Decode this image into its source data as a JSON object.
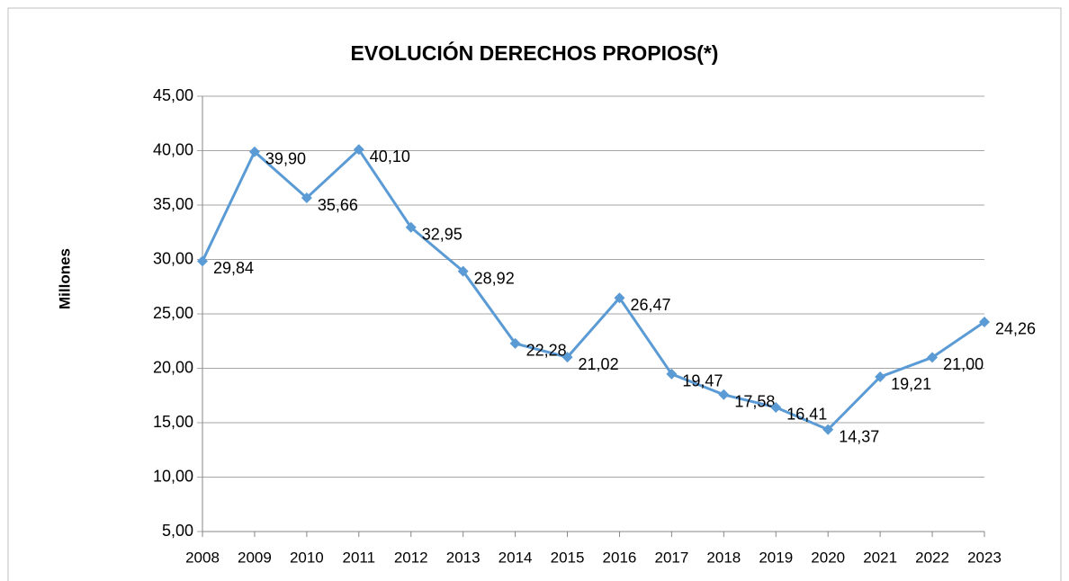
{
  "chart_data": {
    "type": "line",
    "title": "EVOLUCIÓN DERECHOS PROPIOS(*)",
    "y_label": "Millones",
    "categories": [
      "2008",
      "2009",
      "2010",
      "2011",
      "2012",
      "2013",
      "2014",
      "2015",
      "2016",
      "2017",
      "2018",
      "2019",
      "2020",
      "2021",
      "2022",
      "2023"
    ],
    "values": [
      29.84,
      39.9,
      35.66,
      40.1,
      32.95,
      28.92,
      22.28,
      21.02,
      26.47,
      19.47,
      17.58,
      16.41,
      14.37,
      19.21,
      21.0,
      24.26
    ],
    "value_labels": [
      "29,84",
      "39,90",
      "35,66",
      "40,10",
      "32,95",
      "28,92",
      "22,28",
      "21,02",
      "26,47",
      "19,47",
      "17,58",
      "16,41",
      "14,37",
      "19,21",
      "21,00",
      "24,26"
    ],
    "color": "#5b9bd5",
    "ylim": [
      5,
      45
    ],
    "yticks": [
      {
        "value": 5,
        "label": "5,00"
      },
      {
        "value": 10,
        "label": "10,00"
      },
      {
        "value": 15,
        "label": "15,00"
      },
      {
        "value": 20,
        "label": "20,00"
      },
      {
        "value": 25,
        "label": "25,00"
      },
      {
        "value": 30,
        "label": "30,00"
      },
      {
        "value": 35,
        "label": "35,00"
      },
      {
        "value": 40,
        "label": "40,00"
      },
      {
        "value": 45,
        "label": "45,00"
      }
    ],
    "grid": true
  }
}
